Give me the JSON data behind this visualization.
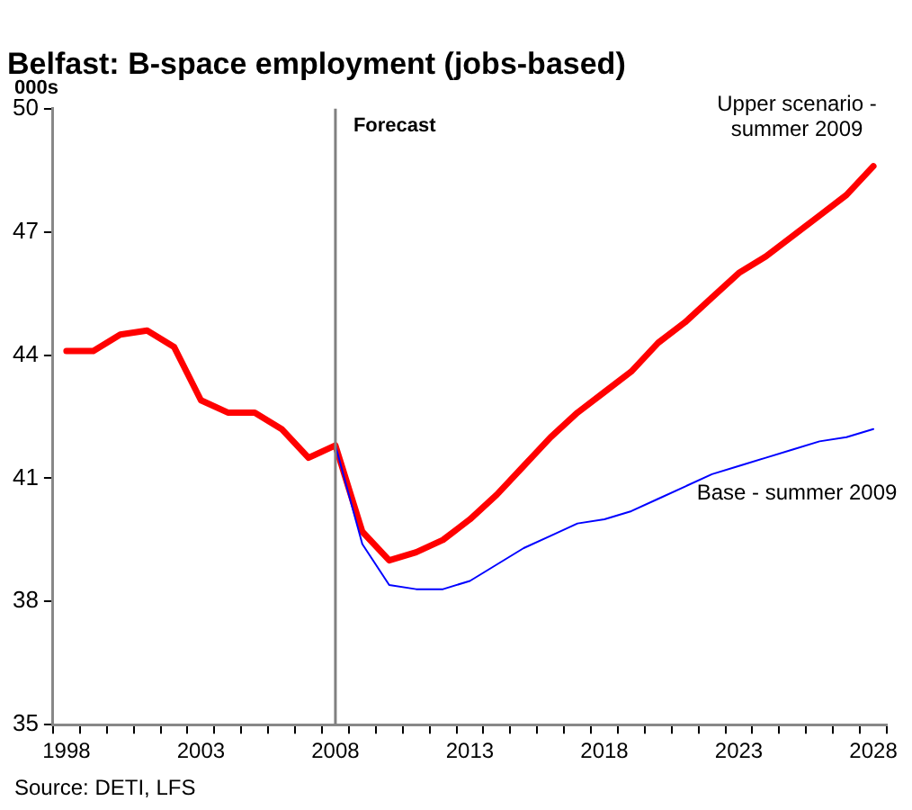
{
  "chart_data": {
    "type": "line",
    "title": "Belfast: B-space employment (jobs-based)",
    "ylabel": "000s",
    "categories": [
      "1998",
      null,
      null,
      null,
      null,
      "2003",
      null,
      null,
      null,
      null,
      "2008",
      null,
      null,
      null,
      null,
      "2013",
      null,
      null,
      null,
      null,
      "2018",
      null,
      null,
      null,
      null,
      "2023",
      null,
      null,
      null,
      null,
      "2028"
    ],
    "series": [
      {
        "name": "Base - summer 2009",
        "color": "#0000ff",
        "values": [
          null,
          null,
          null,
          null,
          null,
          null,
          null,
          null,
          null,
          null,
          41.8,
          39.4,
          38.4,
          38.3,
          38.3,
          38.5,
          38.9,
          39.3,
          39.6,
          39.9,
          40.0,
          40.2,
          40.5,
          40.8,
          41.1,
          41.3,
          41.5,
          41.7,
          41.9,
          42.0,
          42.2
        ]
      },
      {
        "name": "Upper scenario - summer 2009",
        "color": "#ff0000",
        "values": [
          44.1,
          44.1,
          44.5,
          44.6,
          44.2,
          42.9,
          42.6,
          42.6,
          42.2,
          41.5,
          41.8,
          39.7,
          39.0,
          39.2,
          39.5,
          40.0,
          40.6,
          41.3,
          42.0,
          42.6,
          43.1,
          43.6,
          44.3,
          44.8,
          45.4,
          46.0,
          46.4,
          46.9,
          47.4,
          47.9,
          48.6
        ]
      }
    ],
    "ylim": [
      35,
      50
    ],
    "yticks": [
      35,
      38,
      41,
      44,
      47,
      50
    ],
    "grid": false,
    "legend": false,
    "marker": "none",
    "line_style": "solid",
    "ref_lines": [
      {
        "axis": "x",
        "value": "2008",
        "label": "Forecast",
        "color": "#808080"
      }
    ],
    "annotations": [
      "Source: DETI, LFS"
    ]
  }
}
